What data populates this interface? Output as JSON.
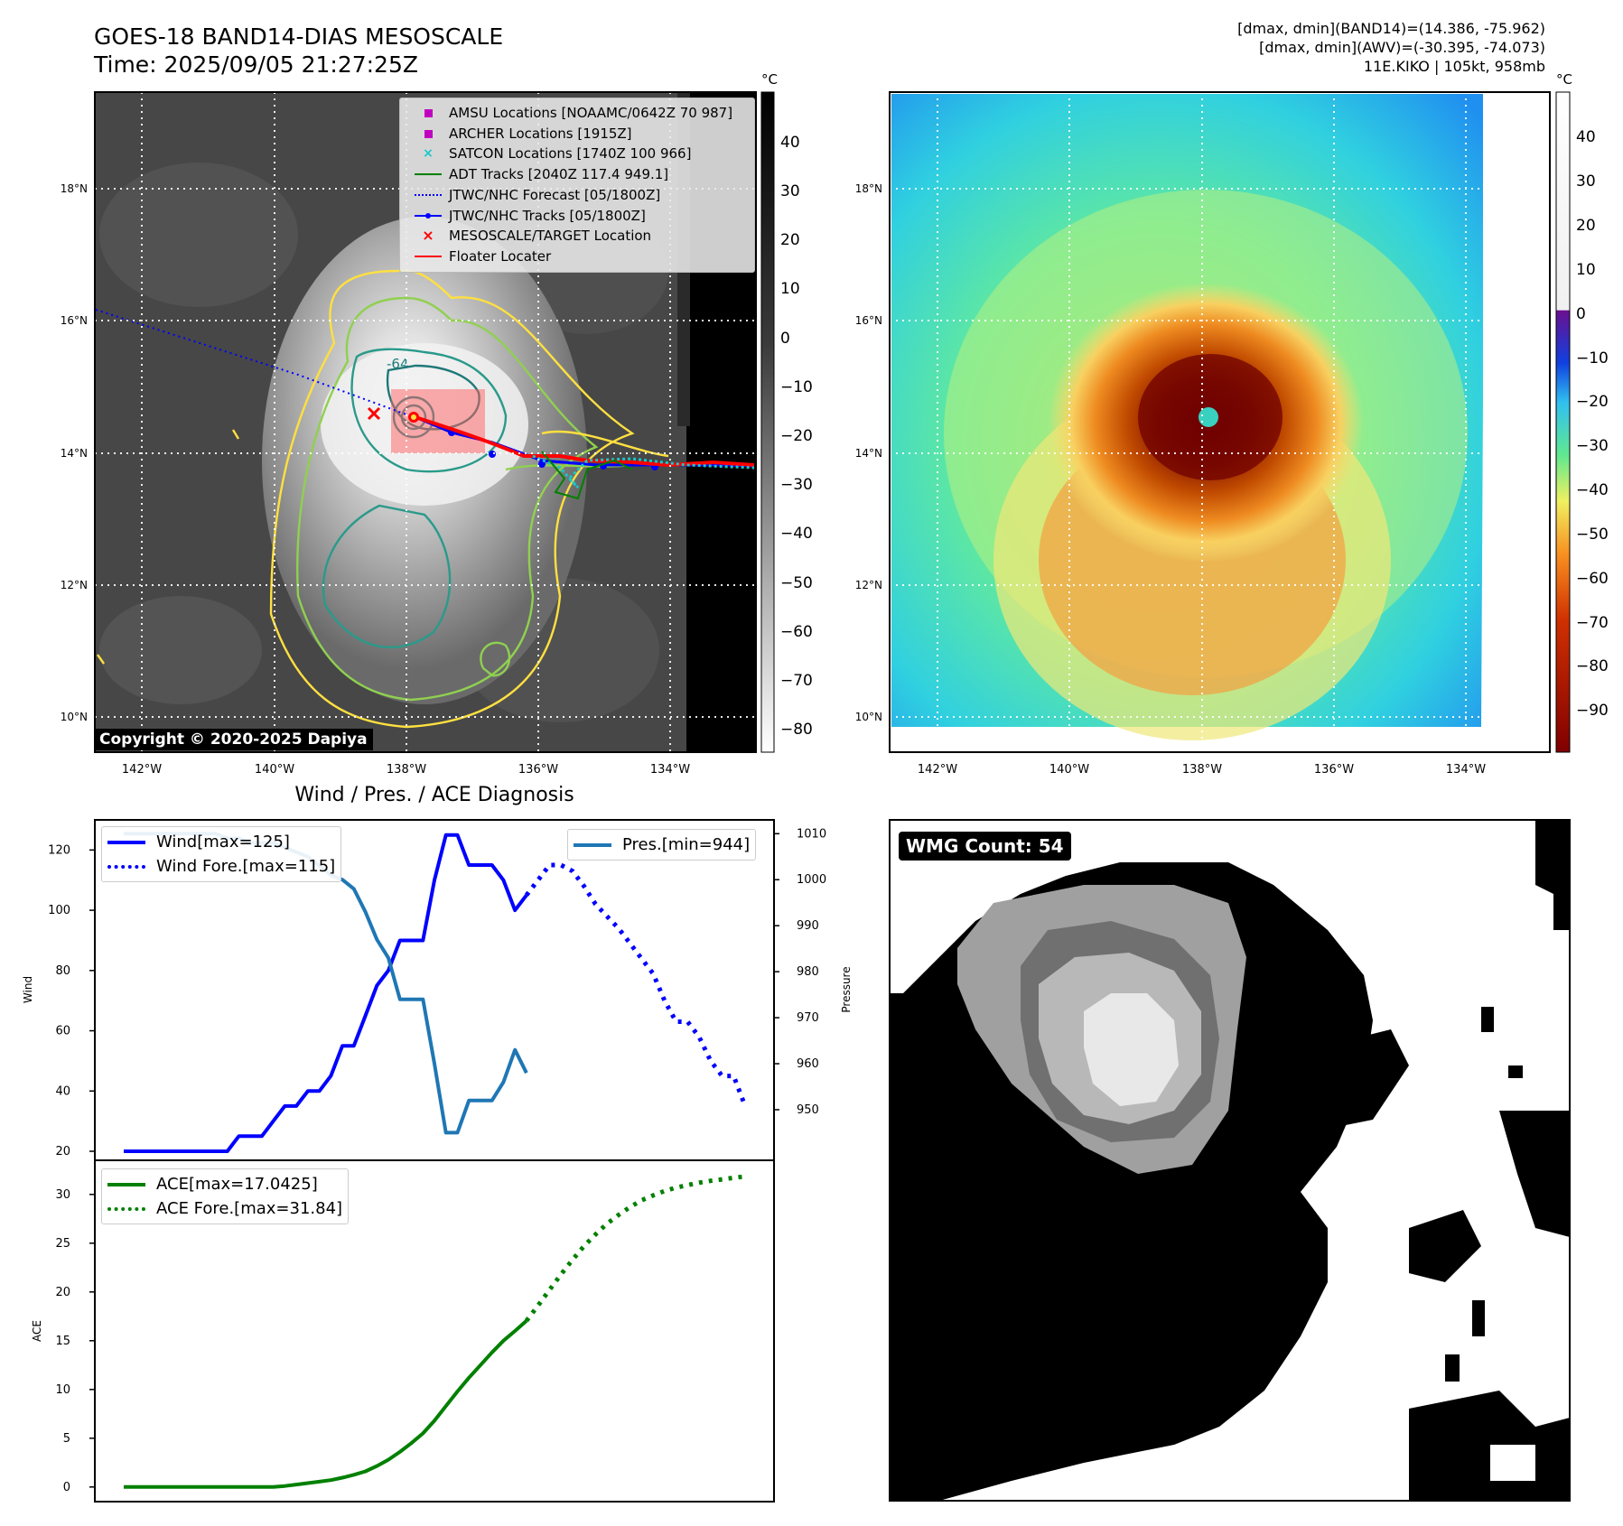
{
  "header": {
    "title_line1": "GOES-18 BAND14-DIAS MESOSCALE",
    "title_line2": "Time: 2025/09/05 21:27:25Z",
    "info_line1": "[dmax, dmin](BAND14)=(14.386, -75.962)",
    "info_line2": "[dmax, dmin](AWV)=(-30.395, -74.073)",
    "info_line3": "11E.KIKO | 105kt, 958mb"
  },
  "ir_panel": {
    "copyright": "Copyright © 2020-2025 Dapiya",
    "colorbar_unit": "°C",
    "colorbar_ticks": [
      "40",
      "30",
      "20",
      "10",
      "0",
      "−10",
      "−20",
      "−30",
      "−40",
      "−50",
      "−60",
      "−70",
      "−80"
    ],
    "lat_labels": [
      "18°N",
      "16°N",
      "14°N",
      "12°N",
      "10°N"
    ],
    "lon_labels": [
      "142°W",
      "140°W",
      "138°W",
      "136°W",
      "134°W"
    ],
    "contour_label": "-64",
    "legend": [
      {
        "label": "AMSU Locations [NOAAMC/0642Z 70 987]",
        "marker": "square",
        "color": "#c000c0"
      },
      {
        "label": "ARCHER Locations [1915Z]",
        "marker": "square",
        "color": "#c000c0"
      },
      {
        "label": "SATCON Locations [1740Z 100 966]",
        "marker": "x",
        "color": "#18c8c8"
      },
      {
        "label": "ADT Tracks [2040Z 117.4 949.1]",
        "marker": "line",
        "color": "#008000"
      },
      {
        "label": "JTWC/NHC Forecast [05/1800Z]",
        "marker": "dotted",
        "color": "#0000ff"
      },
      {
        "label": "JTWC/NHC Tracks [05/1800Z]",
        "marker": "line-dot",
        "color": "#0000ff"
      },
      {
        "label": "MESOSCALE/TARGET Location",
        "marker": "x",
        "color": "#ff0000"
      },
      {
        "label": "Floater Locater",
        "marker": "line",
        "color": "#ff0000"
      }
    ]
  },
  "awv_panel": {
    "colorbar_unit": "°C",
    "colorbar_ticks": [
      "40",
      "30",
      "20",
      "10",
      "0",
      "−10",
      "−20",
      "−30",
      "−40",
      "−50",
      "−60",
      "−70",
      "−80",
      "−90"
    ],
    "lat_labels": [
      "18°N",
      "16°N",
      "14°N",
      "12°N",
      "10°N"
    ],
    "lon_labels": [
      "142°W",
      "140°W",
      "138°W",
      "136°W",
      "134°W"
    ]
  },
  "wmg_panel": {
    "badge": "WMG Count: 54"
  },
  "chart_data": [
    {
      "type": "line",
      "title": "Wind / Pres. / ACE Diagnosis",
      "xlabel": "",
      "ylabel": "Wind",
      "ylabel_right": "Pressure",
      "ylim": [
        17,
        130
      ],
      "ylim_right": [
        939,
        1013
      ],
      "y_ticks": [
        "20",
        "40",
        "60",
        "80",
        "100",
        "120"
      ],
      "y_ticks_right": [
        "950",
        "960",
        "970",
        "980",
        "990",
        "1000",
        "1010"
      ],
      "series": [
        {
          "name": "Wind[max=125]",
          "axis": "left",
          "style": "solid",
          "color": "#0000ff",
          "x": [
            0,
            1,
            2,
            3,
            4,
            5,
            6,
            7,
            8,
            9,
            10,
            11,
            12,
            13,
            14,
            15,
            16,
            17,
            18,
            19,
            20,
            21,
            22,
            23,
            24,
            25,
            26,
            27,
            28,
            29,
            30,
            31,
            32,
            33,
            34,
            35,
            36,
            37,
            38
          ],
          "values": [
            20,
            20,
            20,
            20,
            20,
            20,
            20,
            20,
            20,
            20,
            25,
            25,
            25,
            30,
            35,
            35,
            40,
            40,
            45,
            55,
            55,
            65,
            75,
            80,
            90,
            90,
            90,
            110,
            125,
            125,
            115,
            115,
            115,
            110,
            100,
            105,
            null,
            null,
            null
          ]
        },
        {
          "name": "Wind Fore.[max=115]",
          "axis": "left",
          "style": "dotted",
          "color": "#0000ff",
          "x": [
            35,
            36,
            37,
            38,
            39,
            40,
            41,
            42,
            43,
            44,
            45,
            46,
            47,
            48,
            49,
            50,
            51,
            52,
            53,
            54
          ],
          "values": [
            105,
            110,
            115,
            115,
            113,
            108,
            102,
            98,
            94,
            89,
            84,
            79,
            70,
            63,
            63,
            58,
            50,
            45,
            45,
            35
          ]
        },
        {
          "name": "Pres.[min=944]",
          "axis": "right",
          "style": "solid",
          "color": "#1f77b4",
          "x": [
            0,
            1,
            2,
            3,
            4,
            5,
            6,
            7,
            8,
            9,
            10,
            11,
            12,
            13,
            14,
            15,
            16,
            17,
            18,
            19,
            20,
            21,
            22,
            23,
            24,
            25,
            26,
            27,
            28,
            29,
            30,
            31,
            32,
            33,
            34,
            35
          ],
          "values": [
            1010,
            1010,
            1010,
            1010,
            1010,
            1010,
            1010,
            1010,
            1010,
            1009,
            1009,
            1008,
            1008,
            1008,
            1007,
            1006,
            1005,
            1003,
            1001,
            1000,
            998,
            993,
            987,
            983,
            974,
            974,
            974,
            960,
            945,
            945,
            952,
            952,
            952,
            956,
            963,
            958
          ]
        }
      ]
    },
    {
      "type": "line",
      "title": "",
      "xlabel": "",
      "ylabel": "ACE",
      "ylim": [
        -1.5,
        33.5
      ],
      "y_ticks": [
        "0",
        "5",
        "10",
        "15",
        "20",
        "25",
        "30"
      ],
      "series": [
        {
          "name": "ACE[max=17.0425]",
          "style": "solid",
          "color": "#008000",
          "x": [
            0,
            1,
            2,
            3,
            4,
            5,
            6,
            7,
            8,
            9,
            10,
            11,
            12,
            13,
            14,
            15,
            16,
            17,
            18,
            19,
            20,
            21,
            22,
            23,
            24,
            25,
            26,
            27,
            28,
            29,
            30,
            31,
            32,
            33,
            34,
            35
          ],
          "values": [
            0,
            0,
            0,
            0,
            0,
            0,
            0,
            0,
            0,
            0,
            0,
            0,
            0,
            0,
            0.1,
            0.25,
            0.4,
            0.55,
            0.7,
            0.95,
            1.25,
            1.6,
            2.15,
            2.8,
            3.6,
            4.5,
            5.5,
            6.8,
            8.3,
            9.8,
            11.2,
            12.5,
            13.8,
            15,
            16,
            17.04
          ]
        },
        {
          "name": "ACE Fore.[max=31.84]",
          "style": "dotted",
          "color": "#008000",
          "x": [
            35,
            36,
            37,
            38,
            39,
            40,
            41,
            42,
            43,
            44,
            45,
            46,
            47,
            48,
            49,
            50,
            51,
            52,
            53,
            54
          ],
          "values": [
            17.04,
            18.6,
            20.2,
            21.8,
            23.3,
            24.7,
            25.9,
            27,
            27.9,
            28.7,
            29.4,
            29.9,
            30.35,
            30.7,
            30.95,
            31.2,
            31.4,
            31.55,
            31.7,
            31.84
          ]
        }
      ]
    }
  ]
}
